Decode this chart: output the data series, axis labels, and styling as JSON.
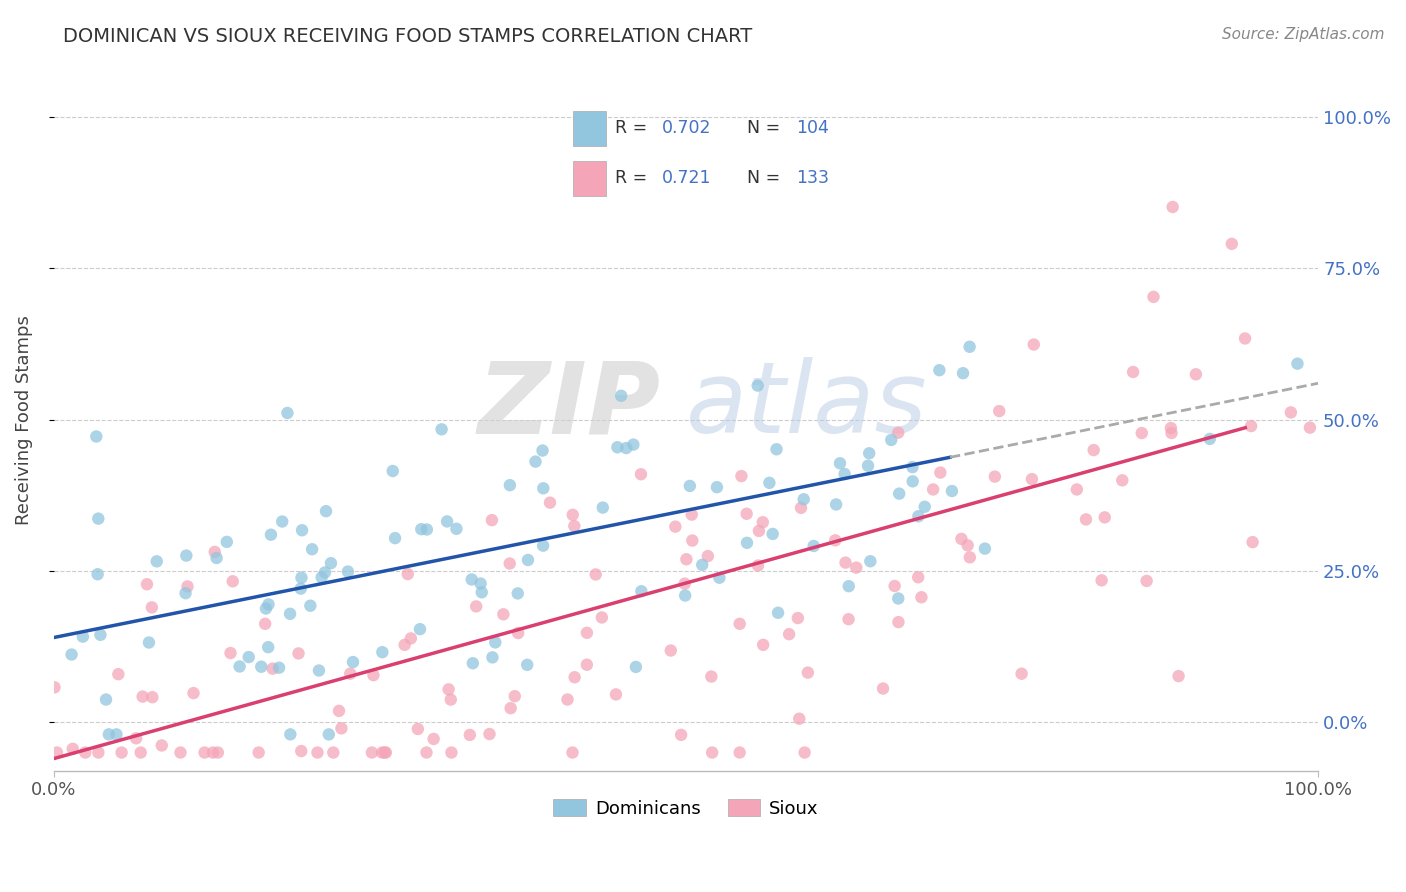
{
  "title": "DOMINICAN VS SIOUX RECEIVING FOOD STAMPS CORRELATION CHART",
  "source_text": "Source: ZipAtlas.com",
  "ylabel": "Receiving Food Stamps",
  "xlim": [
    0.0,
    1.0
  ],
  "ylim": [
    -0.08,
    1.08
  ],
  "x_tick_labels": [
    "0.0%",
    "100.0%"
  ],
  "y_tick_labels": [
    "0.0%",
    "25.0%",
    "50.0%",
    "75.0%",
    "100.0%"
  ],
  "y_tick_positions": [
    0.0,
    0.25,
    0.5,
    0.75,
    1.0
  ],
  "dominican_color": "#92C5DE",
  "sioux_color": "#F4A6B8",
  "dominican_line_color": "#2255AA",
  "sioux_line_color": "#D94070",
  "R_dominican": 0.702,
  "N_dominican": 104,
  "R_sioux": 0.721,
  "N_sioux": 133,
  "legend_labels": [
    "Dominicans",
    "Sioux"
  ],
  "watermark": "ZIPAtlas",
  "background_color": "#FFFFFF",
  "grid_color": "#CCCCCC",
  "title_color": "#333333",
  "right_tick_color": "#4472C4",
  "seed_dominican": 7,
  "seed_sioux": 23,
  "dom_intercept": 0.14,
  "dom_slope": 0.42,
  "sioux_intercept": -0.06,
  "sioux_slope": 0.58
}
